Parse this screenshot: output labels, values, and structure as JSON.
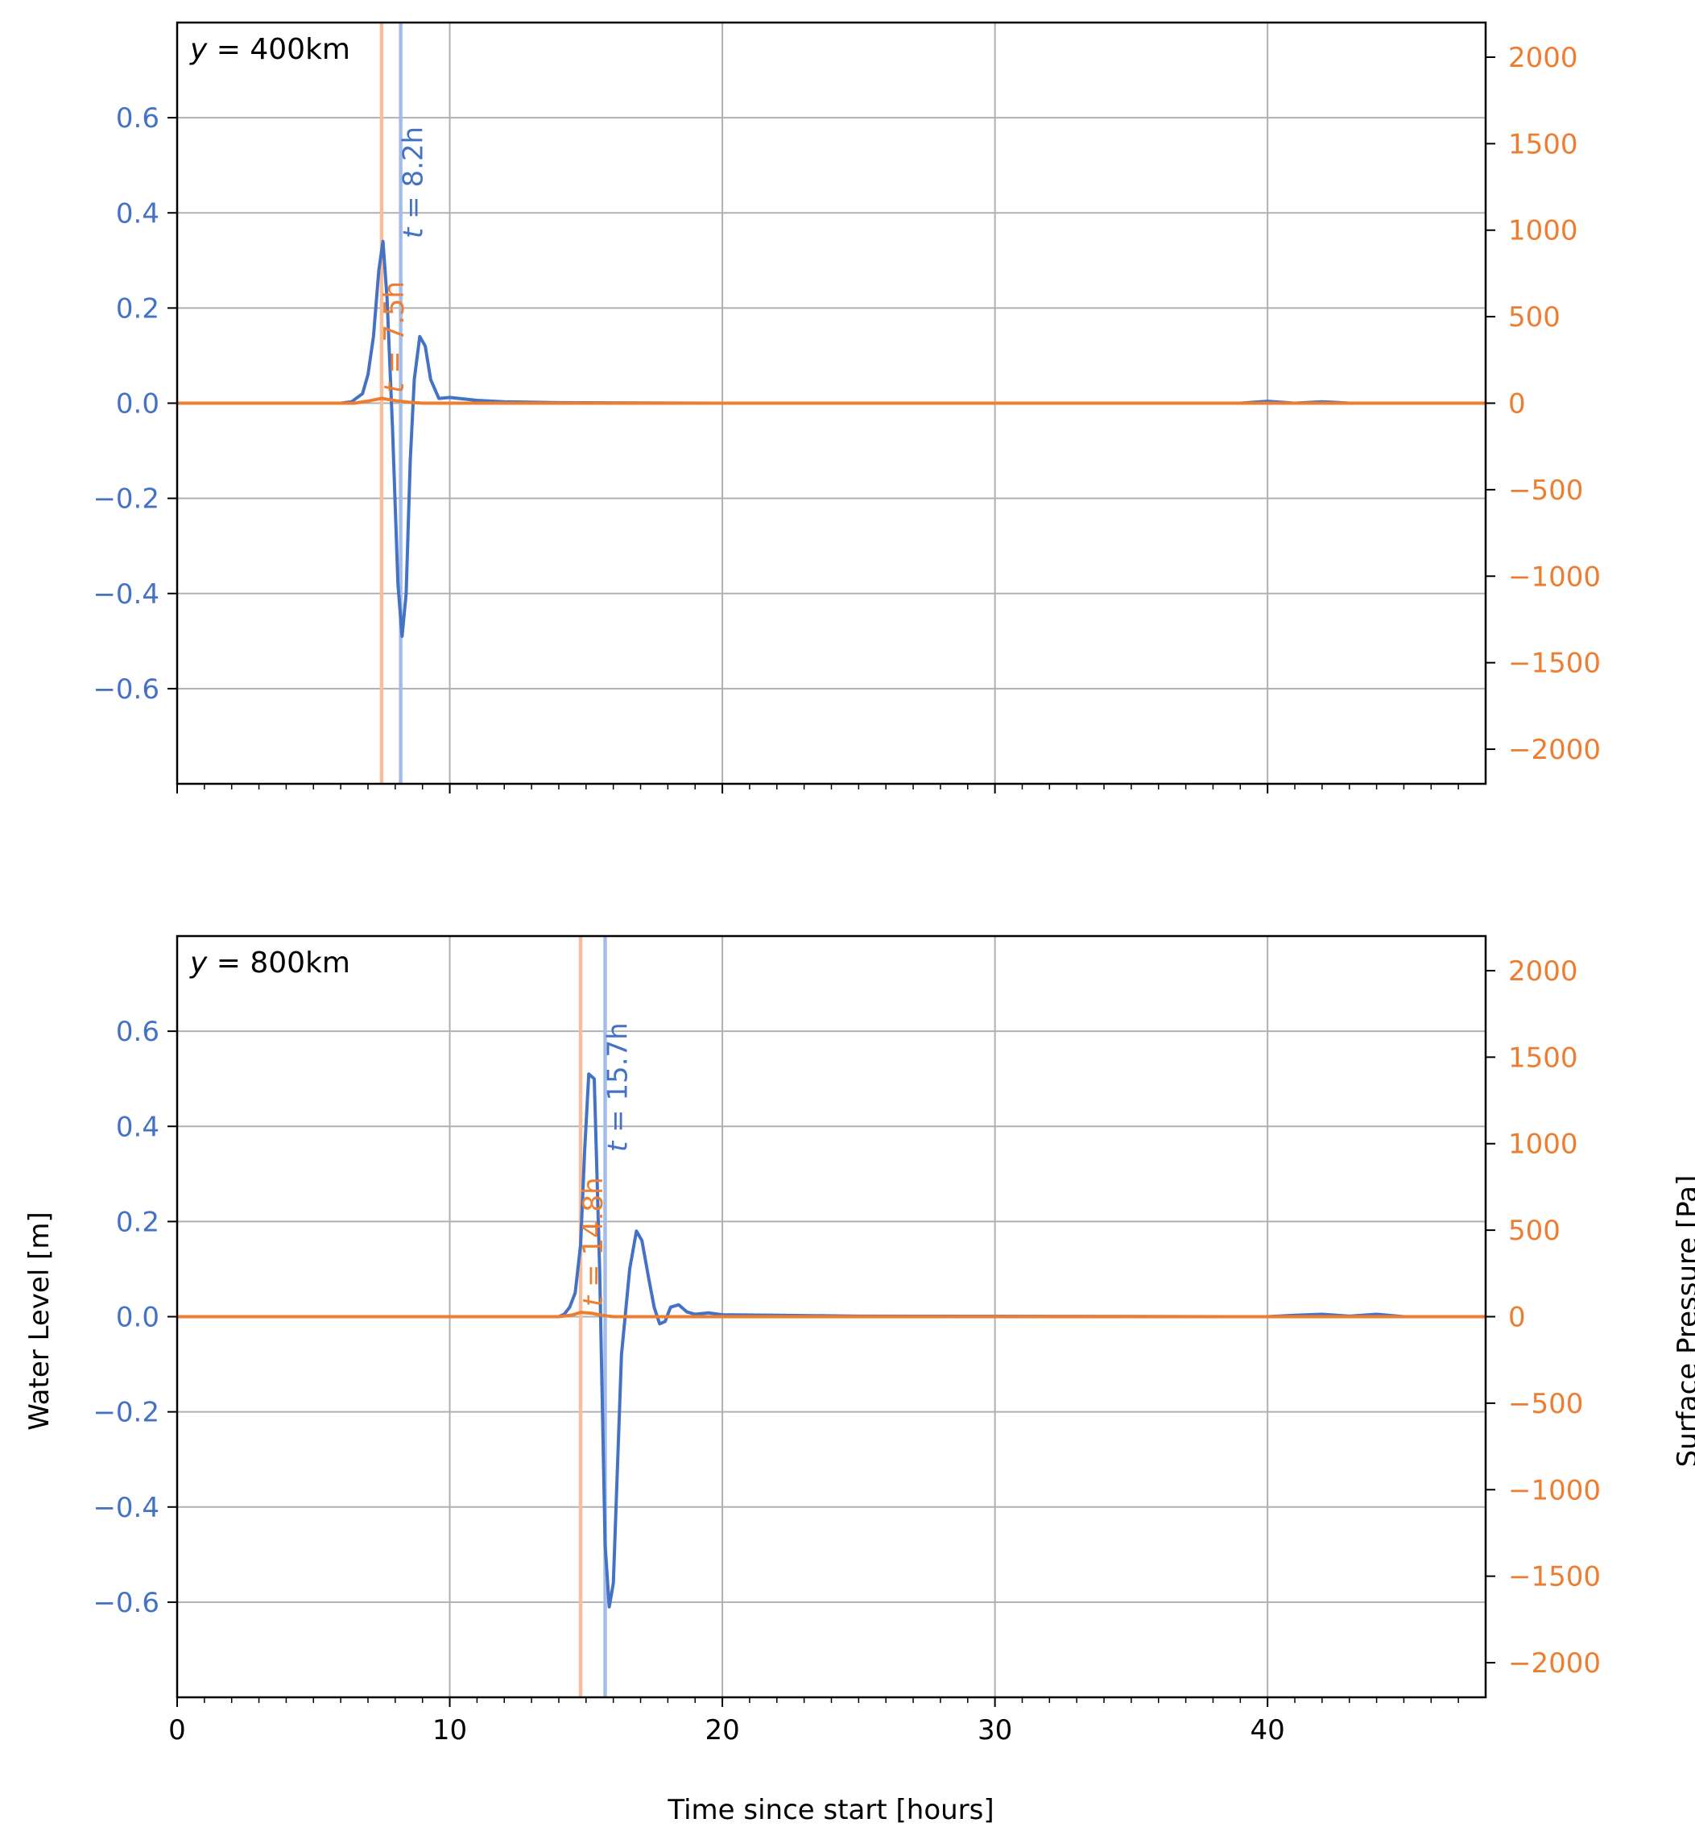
{
  "colors": {
    "water": "#4472c4",
    "pressure": "#ed7d31",
    "water_vline": "#a3bde8",
    "pressure_vline": "#f5bf9c",
    "grid": "#b0b0b0"
  },
  "chart_data": {
    "type": "line",
    "xlabel": "Time since start [hours]",
    "ylabel_left": "Water Level [m]",
    "ylabel_right": "Surface Pressure [Pa]",
    "xlim": [
      0,
      48
    ],
    "ylim_left": [
      -0.8,
      0.8
    ],
    "ylim_right": [
      -2200,
      2200
    ],
    "x_ticks": [
      0,
      10,
      20,
      30,
      40
    ],
    "x_tick_labels": [
      "0",
      "10",
      "20",
      "30",
      "40"
    ],
    "y_left_ticks": [
      0.6,
      0.4,
      0.2,
      0.0,
      -0.2,
      -0.4,
      -0.6
    ],
    "y_left_tick_labels": [
      "0.6",
      "0.4",
      "0.2",
      "0.0",
      "−0.2",
      "−0.4",
      "−0.6"
    ],
    "y_right_ticks": [
      2000,
      1500,
      1000,
      500,
      0,
      -500,
      -1000,
      -1500,
      -2000
    ],
    "y_right_tick_labels": [
      "2000",
      "1500",
      "1000",
      "500",
      "0",
      "−500",
      "−1000",
      "−1500",
      "−2000"
    ],
    "grid": true,
    "panels": [
      {
        "label_var": "y",
        "label_rest": " = 400km",
        "water_vline": {
          "t": 8.2,
          "label_var": "t",
          "label_rest": " = 8.2h"
        },
        "pressure_vline": {
          "t": 7.5,
          "label_var": "t",
          "label_rest": " = 7.5h"
        },
        "series": [
          {
            "axis": "left",
            "x": [
              0,
              5,
              6,
              6.4,
              6.8,
              7.0,
              7.2,
              7.4,
              7.55,
              7.7,
              7.9,
              8.1,
              8.25,
              8.4,
              8.55,
              8.7,
              8.9,
              9.1,
              9.3,
              9.6,
              10.0,
              11,
              12,
              14,
              20,
              39,
              40,
              41,
              42,
              43,
              48
            ],
            "y": [
              0,
              0,
              0,
              0.003,
              0.02,
              0.06,
              0.14,
              0.28,
              0.34,
              0.22,
              -0.05,
              -0.38,
              -0.49,
              -0.4,
              -0.12,
              0.05,
              0.14,
              0.12,
              0.05,
              0.01,
              0.012,
              0.006,
              0.003,
              0.001,
              0,
              0,
              0.004,
              0,
              0.003,
              0,
              0
            ]
          },
          {
            "axis": "right",
            "x": [
              0,
              6.5,
              7.0,
              7.5,
              8.0,
              8.5,
              9.0,
              48
            ],
            "y": [
              0,
              0,
              12,
              28,
              15,
              5,
              0,
              0
            ]
          }
        ]
      },
      {
        "label_var": "y",
        "label_rest": " = 800km",
        "water_vline": {
          "t": 15.7,
          "label_var": "t",
          "label_rest": " = 15.7h"
        },
        "pressure_vline": {
          "t": 14.8,
          "label_var": "t",
          "label_rest": " = 14.8h"
        },
        "series": [
          {
            "axis": "left",
            "x": [
              0,
              13,
              14,
              14.2,
              14.4,
              14.6,
              14.8,
              14.95,
              15.1,
              15.3,
              15.5,
              15.7,
              15.85,
              16.0,
              16.3,
              16.6,
              16.85,
              17.05,
              17.3,
              17.5,
              17.7,
              17.9,
              18.1,
              18.4,
              18.7,
              19.0,
              19.5,
              20.0,
              22,
              25,
              40,
              41,
              42,
              43,
              44,
              45,
              48
            ],
            "y": [
              0,
              0,
              0,
              0.005,
              0.02,
              0.05,
              0.15,
              0.35,
              0.51,
              0.5,
              0.1,
              -0.48,
              -0.61,
              -0.56,
              -0.08,
              0.1,
              0.18,
              0.16,
              0.08,
              0.02,
              -0.015,
              -0.01,
              0.02,
              0.025,
              0.01,
              0.005,
              0.008,
              0.004,
              0.003,
              0.001,
              0,
              0.003,
              0.005,
              0.001,
              0.005,
              0,
              0
            ]
          },
          {
            "axis": "right",
            "x": [
              0,
              14.0,
              14.5,
              14.8,
              15.2,
              15.6,
              16.0,
              48
            ],
            "y": [
              0,
              0,
              10,
              25,
              20,
              8,
              0,
              0
            ]
          }
        ]
      }
    ]
  }
}
